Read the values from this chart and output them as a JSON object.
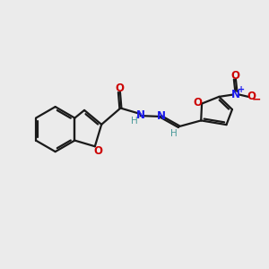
{
  "bg_color": "#ebebeb",
  "bond_color": "#1a1a1a",
  "oxygen_color": "#cc0000",
  "nitrogen_color": "#1a1aee",
  "h_color": "#4a9a9a",
  "line_width": 1.6,
  "figsize": [
    3.0,
    3.0
  ],
  "dpi": 100,
  "xlim": [
    0,
    10
  ],
  "ylim": [
    0,
    10
  ]
}
